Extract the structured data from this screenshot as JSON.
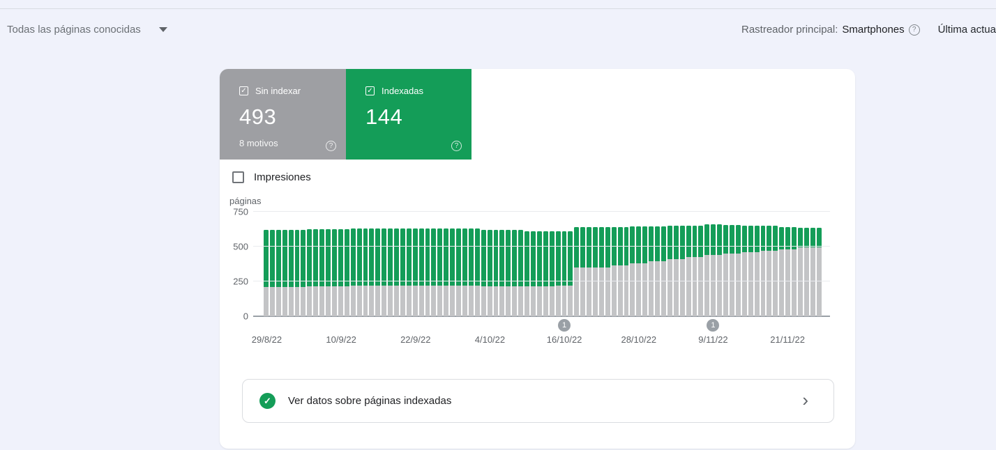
{
  "icons": {
    "check": "✓",
    "help": "?",
    "chevron": "›"
  },
  "header": {
    "page_filter": "Todas las páginas conocidas",
    "crawler_label": "Rastreador principal:",
    "crawler_value": "Smartphones",
    "last_update": "Última actuali"
  },
  "cards": {
    "not_indexed": {
      "label": "Sin indexar",
      "value": "493",
      "sub": "8 motivos",
      "color": "#9e9fa3"
    },
    "indexed": {
      "label": "Indexadas",
      "value": "144",
      "color": "#149d58"
    }
  },
  "impressions_toggle": {
    "label": "Impresiones",
    "checked": false
  },
  "chart_data": {
    "type": "bar",
    "stacked": true,
    "ylabel": "páginas",
    "ylim": [
      0,
      750
    ],
    "y_ticks": [
      0,
      250,
      500,
      750
    ],
    "grid": true,
    "x_tick_labels": [
      {
        "index": 0,
        "label": "29/8/22"
      },
      {
        "index": 12,
        "label": "10/9/22"
      },
      {
        "index": 24,
        "label": "22/9/22"
      },
      {
        "index": 36,
        "label": "4/10/22"
      },
      {
        "index": 48,
        "label": "16/10/22"
      },
      {
        "index": 60,
        "label": "28/10/22"
      },
      {
        "index": 72,
        "label": "9/11/22"
      },
      {
        "index": 84,
        "label": "21/11/22"
      }
    ],
    "annotations": [
      {
        "index": 48,
        "label": "1"
      },
      {
        "index": 72,
        "label": "1"
      }
    ],
    "series": [
      {
        "name": "Sin indexar",
        "color": "#c3c4c6",
        "values": [
          210,
          210,
          210,
          210,
          210,
          210,
          210,
          213,
          213,
          213,
          213,
          213,
          213,
          213,
          218,
          218,
          218,
          218,
          218,
          218,
          218,
          220,
          220,
          220,
          220,
          220,
          220,
          220,
          220,
          220,
          220,
          220,
          220,
          220,
          220,
          216,
          216,
          216,
          216,
          216,
          216,
          216,
          215,
          215,
          215,
          215,
          215,
          220,
          220,
          220,
          348,
          348,
          348,
          352,
          352,
          352,
          365,
          365,
          365,
          378,
          378,
          378,
          395,
          395,
          395,
          408,
          408,
          408,
          425,
          425,
          425,
          440,
          440,
          440,
          452,
          452,
          452,
          462,
          462,
          462,
          472,
          472,
          472,
          482,
          482,
          482,
          493,
          493,
          493,
          493
        ]
      },
      {
        "name": "Indexadas",
        "color": "#149d58",
        "values": [
          410,
          410,
          410,
          410,
          410,
          410,
          410,
          411,
          411,
          411,
          411,
          411,
          411,
          411,
          412,
          412,
          412,
          412,
          412,
          412,
          412,
          412,
          412,
          412,
          412,
          412,
          412,
          412,
          408,
          408,
          408,
          408,
          408,
          408,
          408,
          404,
          404,
          404,
          404,
          404,
          404,
          404,
          397,
          397,
          397,
          397,
          397,
          388,
          388,
          388,
          290,
          290,
          290,
          288,
          288,
          288,
          275,
          275,
          275,
          265,
          265,
          265,
          251,
          251,
          251,
          240,
          240,
          240,
          227,
          227,
          227,
          220,
          220,
          220,
          203,
          203,
          203,
          188,
          188,
          188,
          176,
          176,
          176,
          160,
          160,
          160,
          144,
          144,
          144,
          144
        ]
      }
    ]
  },
  "footer": {
    "link_label": "Ver datos sobre páginas indexadas"
  }
}
